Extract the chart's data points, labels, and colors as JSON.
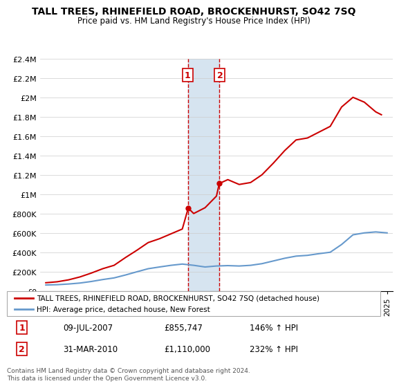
{
  "title": "TALL TREES, RHINEFIELD ROAD, BROCKENHURST, SO42 7SQ",
  "subtitle": "Price paid vs. HM Land Registry's House Price Index (HPI)",
  "legend_line1": "TALL TREES, RHINEFIELD ROAD, BROCKENHURST, SO42 7SQ (detached house)",
  "legend_line2": "HPI: Average price, detached house, New Forest",
  "footnote": "Contains HM Land Registry data © Crown copyright and database right 2024.\nThis data is licensed under the Open Government Licence v3.0.",
  "transaction1_date": "09-JUL-2007",
  "transaction1_price": "£855,747",
  "transaction1_hpi": "146% ↑ HPI",
  "transaction2_date": "31-MAR-2010",
  "transaction2_price": "£1,110,000",
  "transaction2_hpi": "232% ↑ HPI",
  "transaction1_year": 2007.52,
  "transaction2_year": 2010.25,
  "price_color": "#cc0000",
  "hpi_color": "#6699cc",
  "highlight_color": "#d6e4f0",
  "ylim_min": 0,
  "ylim_max": 2400000,
  "xlim_min": 1994.5,
  "xlim_max": 2025.5,
  "hpi_years": [
    1995,
    1996,
    1997,
    1998,
    1999,
    2000,
    2001,
    2002,
    2003,
    2004,
    2005,
    2006,
    2007,
    2008,
    2009,
    2010,
    2011,
    2012,
    2013,
    2014,
    2015,
    2016,
    2017,
    2018,
    2019,
    2020,
    2021,
    2022,
    2023,
    2024,
    2025
  ],
  "hpi_values": [
    62000,
    65000,
    72000,
    82000,
    98000,
    118000,
    135000,
    165000,
    198000,
    230000,
    248000,
    265000,
    278000,
    265000,
    248000,
    258000,
    262000,
    258000,
    265000,
    282000,
    310000,
    338000,
    360000,
    368000,
    385000,
    400000,
    480000,
    580000,
    600000,
    610000,
    600000
  ],
  "price_years": [
    1995,
    1996,
    1997,
    1998,
    1999,
    2000,
    2001,
    2002,
    2003,
    2004,
    2005,
    2006,
    2007,
    2007.52,
    2008,
    2009,
    2010,
    2010.25,
    2011,
    2012,
    2013,
    2014,
    2015,
    2016,
    2017,
    2018,
    2019,
    2020,
    2021,
    2022,
    2023,
    2024,
    2024.5
  ],
  "price_values": [
    85000,
    95000,
    115000,
    145000,
    185000,
    230000,
    265000,
    345000,
    420000,
    500000,
    540000,
    590000,
    640000,
    855747,
    800000,
    860000,
    980000,
    1110000,
    1150000,
    1100000,
    1120000,
    1200000,
    1320000,
    1450000,
    1560000,
    1580000,
    1640000,
    1700000,
    1900000,
    2000000,
    1950000,
    1850000,
    1820000
  ]
}
